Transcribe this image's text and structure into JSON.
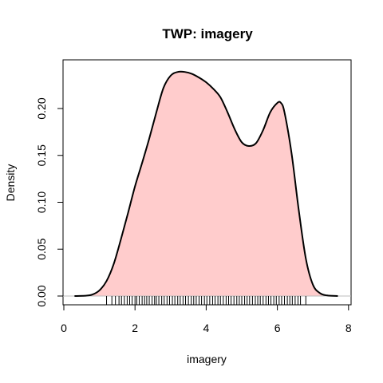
{
  "chart_data": {
    "type": "area",
    "title": "TWP: imagery",
    "xlabel": "imagery",
    "ylabel": "Density",
    "xlim": [
      0,
      8
    ],
    "ylim": [
      0,
      0.22
    ],
    "x_ticks": [
      "0",
      "2",
      "4",
      "6",
      "8"
    ],
    "y_ticks": [
      "0.00",
      "0.05",
      "0.10",
      "0.15",
      "0.20"
    ],
    "x_tick_values": [
      0,
      2,
      4,
      6,
      8
    ],
    "y_tick_values": [
      0,
      0.05,
      0.1,
      0.15,
      0.2
    ],
    "fill_color": "#ffcccc",
    "line_color": "#000000",
    "grid": false,
    "series": [
      {
        "x": [
          0.3,
          0.6,
          0.8,
          1.0,
          1.2,
          1.4,
          1.6,
          1.8,
          2.0,
          2.2,
          2.4,
          2.6,
          2.8,
          3.0,
          3.2,
          3.4,
          3.6,
          3.8,
          4.0,
          4.2,
          4.4,
          4.6,
          4.8,
          5.0,
          5.2,
          5.4,
          5.6,
          5.8,
          6.0,
          6.1,
          6.2,
          6.4,
          6.6,
          6.8,
          7.0,
          7.2,
          7.4,
          7.7
        ],
        "y": [
          0.0,
          0.0003,
          0.0015,
          0.006,
          0.016,
          0.034,
          0.06,
          0.088,
          0.117,
          0.142,
          0.168,
          0.196,
          0.222,
          0.235,
          0.239,
          0.239,
          0.237,
          0.233,
          0.228,
          0.221,
          0.212,
          0.196,
          0.178,
          0.164,
          0.16,
          0.163,
          0.177,
          0.196,
          0.206,
          0.206,
          0.196,
          0.152,
          0.092,
          0.04,
          0.012,
          0.003,
          0.0006,
          0.0
        ]
      }
    ],
    "rug": [
      1.2,
      1.35,
      1.45,
      1.55,
      1.62,
      1.7,
      1.78,
      1.85,
      1.92,
      2.0,
      2.05,
      2.12,
      2.2,
      2.27,
      2.33,
      2.4,
      2.48,
      2.55,
      2.6,
      2.67,
      2.75,
      2.82,
      2.9,
      2.97,
      3.05,
      3.12,
      3.2,
      3.27,
      3.35,
      3.42,
      3.5,
      3.58,
      3.65,
      3.72,
      3.8,
      3.87,
      3.95,
      4.02,
      4.1,
      4.18,
      4.25,
      4.33,
      4.4,
      4.48,
      4.56,
      4.63,
      4.7,
      4.78,
      4.86,
      4.93,
      5.0,
      5.08,
      5.15,
      5.22,
      5.3,
      5.38,
      5.45,
      5.52,
      5.6,
      5.68,
      5.75,
      5.82,
      5.9,
      5.97,
      6.05,
      6.12,
      6.2,
      6.28,
      6.35,
      6.42,
      6.5,
      6.58,
      6.65,
      6.8
    ]
  }
}
